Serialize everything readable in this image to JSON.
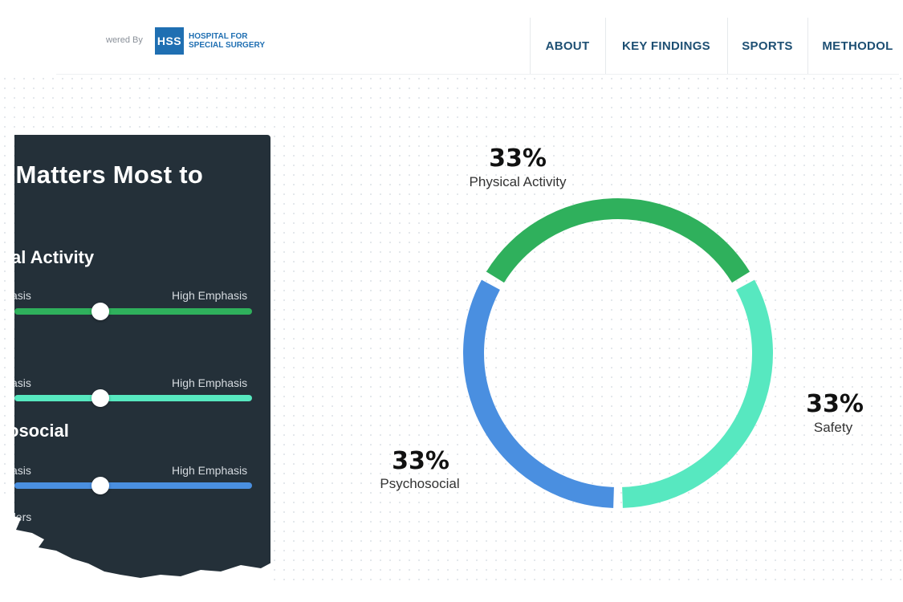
{
  "header": {
    "powered_by": "wered By",
    "logo_mark": "HSS",
    "logo_line1": "HOSPITAL FOR",
    "logo_line2": "SPECIAL SURGERY",
    "nav": [
      "ABOUT",
      "KEY FINDINGS",
      "SPORTS",
      "METHODOL"
    ]
  },
  "panel": {
    "title": "t Matters Most to",
    "title_line2": "",
    "sections": [
      {
        "title": "al Activity",
        "low_label": "asis",
        "high_label": "High Emphasis",
        "value_fraction": 0.5,
        "color": "#2fb05c"
      },
      {
        "title": "",
        "low_label": "asis",
        "high_label": "High Emphasis",
        "value_fraction": 0.5,
        "color": "#57e8c0"
      },
      {
        "title": "osocial",
        "low_label": "asis",
        "high_label": "High Emphasis",
        "value_fraction": 0.5,
        "color": "#4a8fe0"
      }
    ],
    "reset_label": "ders"
  },
  "chart_data": {
    "type": "pie",
    "categories": [
      "Physical Activity",
      "Safety",
      "Psychosocial"
    ],
    "values": [
      33,
      33,
      33
    ],
    "labels": [
      "33%",
      "33%",
      "33%"
    ],
    "colors": [
      "#2fb05c",
      "#57e8c0",
      "#4a8fe0"
    ],
    "donut": true
  }
}
